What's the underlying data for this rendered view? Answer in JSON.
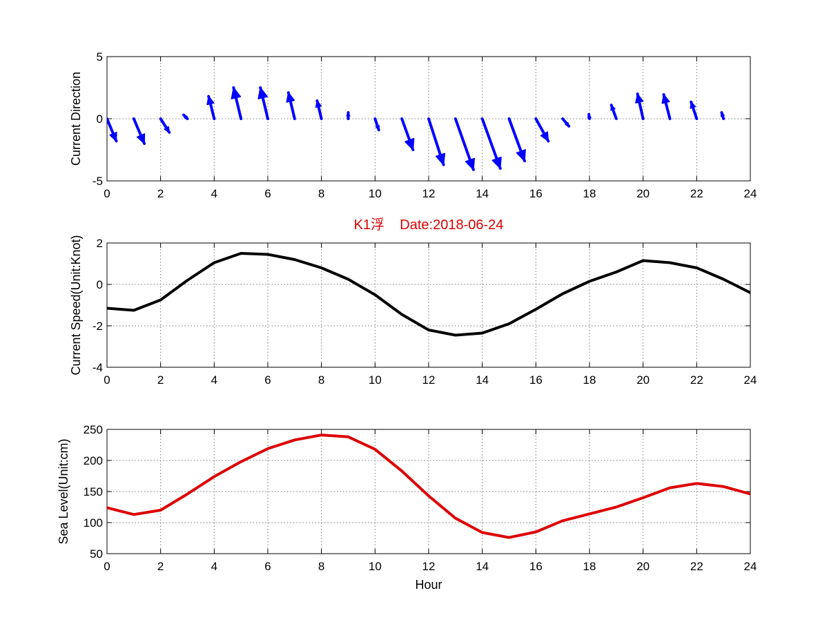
{
  "colors": {
    "direction": "#0000ff",
    "speed": "#000000",
    "sea_level": "#dd0000",
    "title": "#dd0000"
  },
  "chart_data": [
    {
      "type": "quiver",
      "title": "",
      "xlabel": "",
      "ylabel": "Current Direction",
      "xlim": [
        0,
        24
      ],
      "ylim": [
        -5,
        5
      ],
      "xticks": [
        0,
        2,
        4,
        6,
        8,
        10,
        12,
        14,
        16,
        18,
        20,
        22,
        24
      ],
      "yticks": [
        -5,
        0,
        5
      ],
      "grid": true,
      "vectors": [
        {
          "x": 0,
          "u": 0.75,
          "v": -1.8
        },
        {
          "x": 1,
          "u": 0.85,
          "v": -2.0
        },
        {
          "x": 2,
          "u": 0.7,
          "v": -1.1
        },
        {
          "x": 3,
          "u": -0.3,
          "v": 0.3
        },
        {
          "x": 4,
          "u": -0.45,
          "v": 1.8
        },
        {
          "x": 5,
          "u": -0.6,
          "v": 2.5
        },
        {
          "x": 6,
          "u": -0.6,
          "v": 2.5
        },
        {
          "x": 7,
          "u": -0.5,
          "v": 2.1
        },
        {
          "x": 8,
          "u": -0.35,
          "v": 1.45
        },
        {
          "x": 9,
          "u": 0.0,
          "v": 0.5
        },
        {
          "x": 10,
          "u": 0.3,
          "v": -0.9
        },
        {
          "x": 11,
          "u": 0.9,
          "v": -2.5
        },
        {
          "x": 12,
          "u": 1.2,
          "v": -3.7
        },
        {
          "x": 13,
          "u": 1.45,
          "v": -4.1
        },
        {
          "x": 14,
          "u": 1.45,
          "v": -4.0
        },
        {
          "x": 15,
          "u": 1.25,
          "v": -3.4
        },
        {
          "x": 16,
          "u": 1.0,
          "v": -1.8
        },
        {
          "x": 17,
          "u": 0.5,
          "v": -0.6
        },
        {
          "x": 18,
          "u": -0.05,
          "v": 0.35
        },
        {
          "x": 19,
          "u": -0.4,
          "v": 1.1
        },
        {
          "x": 20,
          "u": -0.45,
          "v": 2.0
        },
        {
          "x": 21,
          "u": -0.5,
          "v": 1.95
        },
        {
          "x": 22,
          "u": -0.45,
          "v": 1.35
        },
        {
          "x": 23,
          "u": -0.15,
          "v": 0.5
        }
      ]
    },
    {
      "type": "line",
      "title": "K1浮    Date:2018-06-24",
      "xlabel": "",
      "ylabel": "Current Speed(Unit:Knot)",
      "xlim": [
        0,
        24
      ],
      "ylim": [
        -4,
        2
      ],
      "xticks": [
        0,
        2,
        4,
        6,
        8,
        10,
        12,
        14,
        16,
        18,
        20,
        22,
        24
      ],
      "yticks": [
        -4,
        -2,
        0,
        2
      ],
      "grid": true,
      "x": [
        0,
        1,
        2,
        3,
        4,
        5,
        6,
        7,
        8,
        9,
        10,
        11,
        12,
        13,
        14,
        15,
        16,
        17,
        18,
        19,
        20,
        21,
        22,
        23,
        24
      ],
      "y": [
        -1.15,
        -1.25,
        -0.75,
        0.2,
        1.05,
        1.5,
        1.45,
        1.2,
        0.8,
        0.25,
        -0.5,
        -1.45,
        -2.2,
        -2.45,
        -2.35,
        -1.9,
        -1.2,
        -0.45,
        0.15,
        0.6,
        1.15,
        1.05,
        0.8,
        0.25,
        -0.4
      ]
    },
    {
      "type": "line",
      "title": "",
      "xlabel": "Hour",
      "ylabel": "Sea Level(Unit:cm)",
      "xlim": [
        0,
        24
      ],
      "ylim": [
        50,
        250
      ],
      "xticks": [
        0,
        2,
        4,
        6,
        8,
        10,
        12,
        14,
        16,
        18,
        20,
        22,
        24
      ],
      "yticks": [
        50,
        100,
        150,
        200,
        250
      ],
      "grid": true,
      "x": [
        0,
        1,
        2,
        3,
        4,
        5,
        6,
        7,
        8,
        9,
        10,
        11,
        12,
        13,
        14,
        15,
        16,
        17,
        18,
        19,
        20,
        21,
        22,
        23,
        24
      ],
      "y": [
        124,
        113,
        120,
        146,
        174,
        198,
        219,
        233,
        241,
        238,
        218,
        183,
        143,
        107,
        84,
        76,
        85,
        103,
        114,
        125,
        140,
        156,
        163,
        158,
        146
      ]
    }
  ]
}
